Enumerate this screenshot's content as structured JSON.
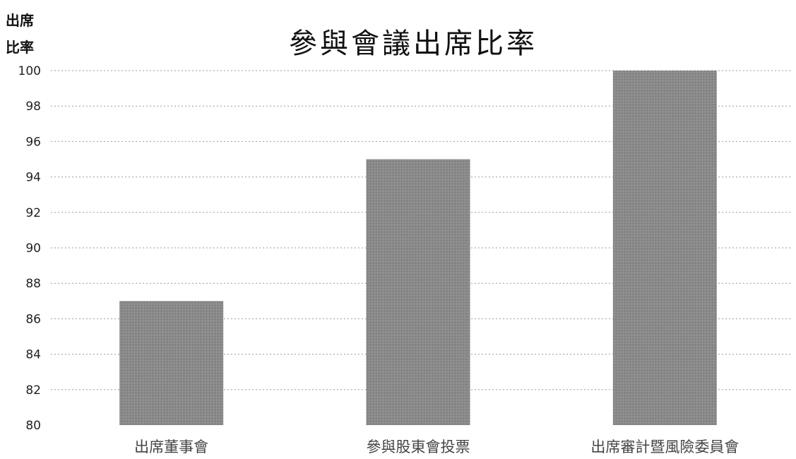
{
  "chart_data": {
    "type": "bar",
    "title": "參與會議出席比率",
    "ylabel": [
      "出席",
      "比率"
    ],
    "xlabel": "",
    "categories": [
      "出席董事會",
      "參與股東會投票",
      "出席審計暨風險委員會"
    ],
    "values": [
      87,
      95,
      100
    ],
    "ylim": [
      80,
      100
    ],
    "yticks": [
      80,
      82,
      84,
      86,
      88,
      90,
      92,
      94,
      96,
      98,
      100
    ],
    "grid": true,
    "legend": "none",
    "bar_color": "#8a8a8a"
  }
}
